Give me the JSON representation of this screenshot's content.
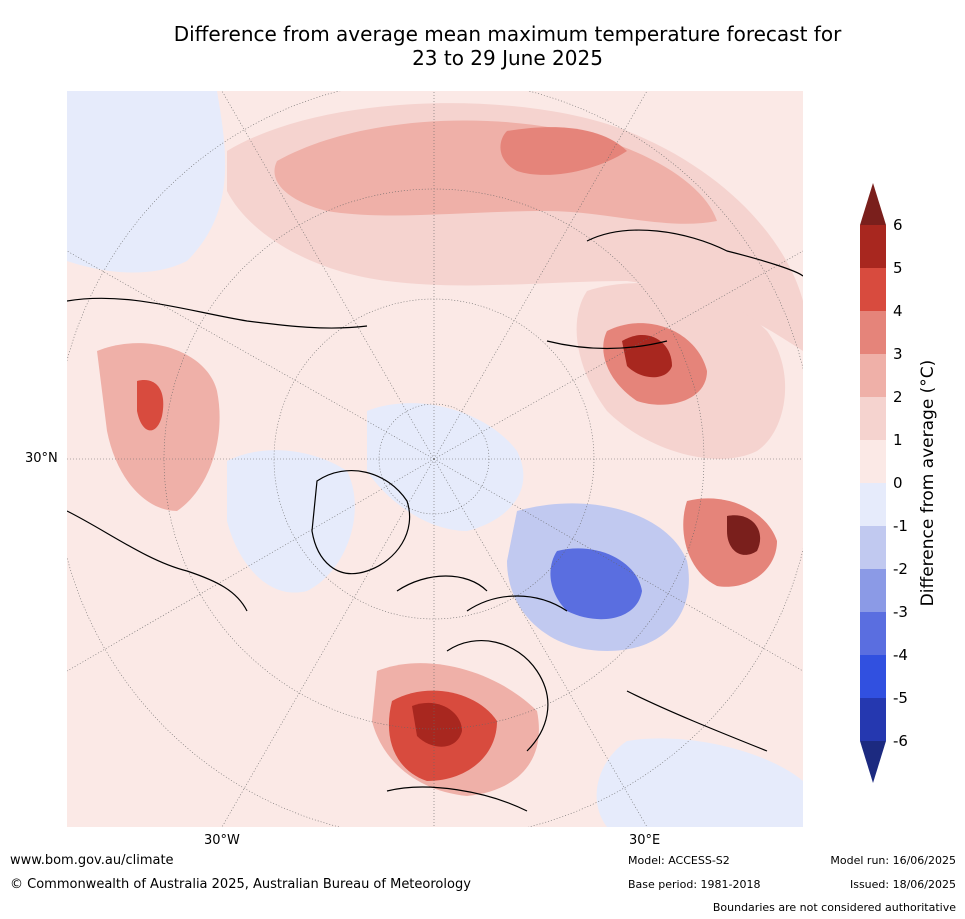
{
  "title_line1": "Difference from average mean maximum temperature forecast for",
  "title_line2": "23 to 29 June 2025",
  "map": {
    "lat_label": "30°N",
    "lon_labels": [
      "30°W",
      "30°E"
    ]
  },
  "colorbar": {
    "label": "Difference from average (°C)",
    "ticks": [
      "6",
      "5",
      "4",
      "3",
      "2",
      "1",
      "0",
      "-1",
      "-2",
      "-3",
      "-4",
      "-5",
      "-6"
    ],
    "colors": {
      "over": "#7a1f1c",
      "5_6": "#a8271f",
      "4_5": "#d84b3e",
      "3_4": "#e5847a",
      "2_3": "#efb0a8",
      "1_2": "#f5d3cf",
      "0_1": "#fbe9e6",
      "m1_0": "#e6ebfb",
      "m2_m1": "#c1c9f0",
      "m3_m2": "#8b9ae6",
      "m4_m3": "#5a6ee0",
      "m5_m4": "#3150e0",
      "m6_m5": "#2538b0",
      "under": "#1c2a80"
    }
  },
  "footer": {
    "url": "www.bom.gov.au/climate",
    "copyright": "© Commonwealth of Australia 2025, Australian Bureau of Meteorology",
    "model": "Model: ACCESS-S2",
    "base_period": "Base period: 1981-2018",
    "model_run": "Model run: 16/06/2025",
    "issued": "Issued: 18/06/2025",
    "disclaimer": "Boundaries are not considered authoritative"
  }
}
